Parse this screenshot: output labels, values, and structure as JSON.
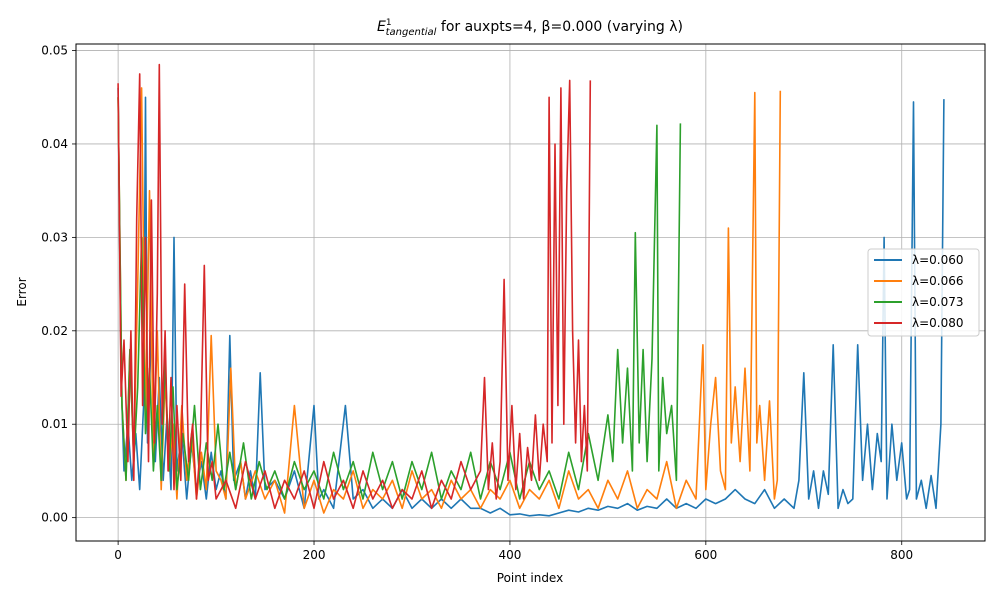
{
  "chart_data": {
    "type": "line",
    "title": {
      "symbol": "E",
      "superscript": "1",
      "subscript": "tangential",
      "rest": " for auxpts=4, β=0.000 (varying λ)"
    },
    "xlabel": "Point index",
    "ylabel": "Error",
    "xlim": [
      -43,
      885
    ],
    "ylim": [
      -0.0025,
      0.0507
    ],
    "xticks": [
      0,
      200,
      400,
      600,
      800
    ],
    "xtick_labels": [
      "0",
      "200",
      "400",
      "600",
      "800"
    ],
    "yticks": [
      0.0,
      0.01,
      0.02,
      0.03,
      0.04,
      0.05
    ],
    "ytick_labels": [
      "0.00",
      "0.01",
      "0.02",
      "0.03",
      "0.04",
      "0.05"
    ],
    "grid": true,
    "legend_position": "center-right",
    "series": [
      {
        "name": "λ=0.060",
        "color": "#1f77b4",
        "x": [
          0,
          3,
          6,
          10,
          14,
          18,
          22,
          26,
          28,
          30,
          34,
          38,
          42,
          46,
          50,
          54,
          57,
          60,
          65,
          70,
          75,
          80,
          85,
          90,
          95,
          100,
          105,
          110,
          114,
          118,
          125,
          130,
          135,
          140,
          145,
          150,
          160,
          170,
          180,
          190,
          200,
          205,
          210,
          220,
          232,
          240,
          250,
          260,
          270,
          280,
          290,
          300,
          310,
          320,
          330,
          340,
          350,
          360,
          370,
          380,
          390,
          400,
          410,
          420,
          430,
          440,
          450,
          460,
          470,
          480,
          490,
          500,
          510,
          520,
          530,
          540,
          550,
          560,
          570,
          580,
          590,
          600,
          610,
          620,
          630,
          640,
          650,
          660,
          670,
          680,
          690,
          695,
          700,
          705,
          710,
          715,
          720,
          725,
          730,
          735,
          740,
          745,
          750,
          755,
          760,
          765,
          770,
          775,
          779,
          782,
          785,
          790,
          795,
          800,
          805,
          808,
          812,
          815,
          820,
          825,
          830,
          835,
          840,
          843
        ],
        "values": [
          0.046,
          0.015,
          0.005,
          0.01,
          0.004,
          0.009,
          0.003,
          0.012,
          0.045,
          0.008,
          0.02,
          0.006,
          0.015,
          0.004,
          0.011,
          0.003,
          0.03,
          0.005,
          0.009,
          0.002,
          0.008,
          0.003,
          0.006,
          0.002,
          0.007,
          0.003,
          0.005,
          0.002,
          0.0195,
          0.004,
          0.006,
          0.002,
          0.005,
          0.002,
          0.0155,
          0.003,
          0.004,
          0.002,
          0.005,
          0.001,
          0.012,
          0.002,
          0.003,
          0.001,
          0.012,
          0.002,
          0.003,
          0.001,
          0.002,
          0.001,
          0.003,
          0.001,
          0.002,
          0.001,
          0.002,
          0.001,
          0.002,
          0.001,
          0.001,
          0.0005,
          0.001,
          0.0003,
          0.0004,
          0.0002,
          0.0003,
          0.0002,
          0.0005,
          0.0008,
          0.0006,
          0.001,
          0.0008,
          0.0012,
          0.001,
          0.0015,
          0.0008,
          0.0012,
          0.001,
          0.002,
          0.001,
          0.0015,
          0.001,
          0.002,
          0.0015,
          0.002,
          0.003,
          0.002,
          0.0015,
          0.003,
          0.001,
          0.002,
          0.001,
          0.004,
          0.0155,
          0.002,
          0.005,
          0.001,
          0.005,
          0.0025,
          0.0185,
          0.001,
          0.003,
          0.0015,
          0.002,
          0.0185,
          0.004,
          0.01,
          0.003,
          0.009,
          0.006,
          0.03,
          0.002,
          0.01,
          0.004,
          0.008,
          0.002,
          0.003,
          0.0445,
          0.002,
          0.004,
          0.001,
          0.0045,
          0.001,
          0.01,
          0.0448
        ]
      },
      {
        "name": "λ=0.066",
        "color": "#ff7f0e",
        "x": [
          0,
          4,
          8,
          12,
          16,
          20,
          24,
          28,
          32,
          36,
          40,
          44,
          48,
          52,
          56,
          60,
          65,
          70,
          75,
          80,
          85,
          90,
          95,
          100,
          105,
          110,
          115,
          120,
          125,
          130,
          140,
          150,
          160,
          170,
          180,
          190,
          200,
          210,
          220,
          230,
          240,
          250,
          260,
          270,
          280,
          290,
          300,
          310,
          320,
          330,
          340,
          350,
          360,
          370,
          380,
          390,
          400,
          410,
          420,
          430,
          440,
          450,
          460,
          470,
          480,
          490,
          500,
          510,
          520,
          530,
          540,
          550,
          560,
          570,
          580,
          590,
          597,
          600,
          605,
          610,
          615,
          620,
          623,
          626,
          630,
          635,
          640,
          645,
          650,
          652,
          655,
          660,
          665,
          670,
          673,
          676
        ],
        "values": [
          0.045,
          0.012,
          0.004,
          0.018,
          0.006,
          0.025,
          0.046,
          0.01,
          0.035,
          0.006,
          0.02,
          0.003,
          0.015,
          0.005,
          0.01,
          0.002,
          0.012,
          0.004,
          0.009,
          0.002,
          0.007,
          0.003,
          0.0195,
          0.005,
          0.004,
          0.002,
          0.016,
          0.003,
          0.006,
          0.002,
          0.005,
          0.002,
          0.004,
          0.0005,
          0.012,
          0.001,
          0.004,
          0.0005,
          0.003,
          0.002,
          0.005,
          0.001,
          0.003,
          0.002,
          0.004,
          0.001,
          0.005,
          0.002,
          0.003,
          0.001,
          0.004,
          0.002,
          0.003,
          0.001,
          0.003,
          0.002,
          0.004,
          0.001,
          0.003,
          0.002,
          0.004,
          0.001,
          0.005,
          0.002,
          0.003,
          0.001,
          0.004,
          0.002,
          0.005,
          0.001,
          0.003,
          0.002,
          0.006,
          0.001,
          0.004,
          0.002,
          0.0185,
          0.003,
          0.01,
          0.015,
          0.005,
          0.003,
          0.031,
          0.008,
          0.014,
          0.006,
          0.016,
          0.005,
          0.0455,
          0.008,
          0.012,
          0.004,
          0.0125,
          0.002,
          0.004,
          0.0457
        ]
      },
      {
        "name": "λ=0.073",
        "color": "#2ca02c",
        "x": [
          0,
          4,
          8,
          12,
          16,
          20,
          24,
          28,
          32,
          36,
          40,
          44,
          48,
          52,
          56,
          60,
          66,
          72,
          78,
          84,
          90,
          96,
          102,
          108,
          114,
          120,
          128,
          136,
          144,
          152,
          160,
          170,
          180,
          190,
          200,
          210,
          220,
          230,
          240,
          250,
          260,
          270,
          280,
          290,
          300,
          310,
          320,
          330,
          340,
          350,
          360,
          370,
          380,
          390,
          400,
          410,
          420,
          430,
          440,
          450,
          460,
          470,
          480,
          490,
          500,
          505,
          510,
          515,
          520,
          525,
          528,
          532,
          536,
          540,
          545,
          550,
          552,
          556,
          560,
          565,
          570,
          574
        ],
        "values": [
          0.045,
          0.012,
          0.004,
          0.018,
          0.006,
          0.014,
          0.03,
          0.009,
          0.016,
          0.005,
          0.012,
          0.004,
          0.017,
          0.005,
          0.014,
          0.003,
          0.009,
          0.004,
          0.012,
          0.003,
          0.008,
          0.004,
          0.01,
          0.003,
          0.007,
          0.003,
          0.008,
          0.002,
          0.006,
          0.003,
          0.005,
          0.002,
          0.006,
          0.003,
          0.005,
          0.002,
          0.007,
          0.003,
          0.006,
          0.002,
          0.007,
          0.003,
          0.006,
          0.002,
          0.006,
          0.003,
          0.007,
          0.002,
          0.005,
          0.003,
          0.007,
          0.002,
          0.006,
          0.003,
          0.007,
          0.002,
          0.006,
          0.003,
          0.005,
          0.002,
          0.007,
          0.003,
          0.009,
          0.004,
          0.011,
          0.006,
          0.018,
          0.008,
          0.016,
          0.005,
          0.0305,
          0.008,
          0.018,
          0.006,
          0.017,
          0.042,
          0.005,
          0.015,
          0.009,
          0.012,
          0.004,
          0.0422
        ]
      },
      {
        "name": "λ=0.080",
        "color": "#d62728",
        "x": [
          0,
          3,
          6,
          10,
          13,
          16,
          19,
          22,
          25,
          28,
          31,
          34,
          37,
          40,
          42,
          45,
          48,
          51,
          54,
          57,
          60,
          64,
          68,
          72,
          76,
          80,
          84,
          88,
          92,
          96,
          100,
          110,
          120,
          130,
          140,
          150,
          160,
          170,
          180,
          190,
          200,
          210,
          220,
          230,
          240,
          250,
          260,
          270,
          280,
          290,
          300,
          310,
          320,
          330,
          340,
          350,
          360,
          370,
          374,
          378,
          382,
          386,
          390,
          394,
          398,
          402,
          406,
          410,
          414,
          418,
          422,
          426,
          430,
          434,
          438,
          440,
          443,
          446,
          449,
          452,
          455,
          458,
          461,
          464,
          467,
          470,
          473,
          476,
          479,
          482
        ],
        "values": [
          0.0465,
          0.013,
          0.019,
          0.006,
          0.02,
          0.004,
          0.032,
          0.0475,
          0.012,
          0.03,
          0.006,
          0.034,
          0.008,
          0.024,
          0.0485,
          0.01,
          0.02,
          0.005,
          0.015,
          0.003,
          0.012,
          0.004,
          0.025,
          0.006,
          0.01,
          0.002,
          0.008,
          0.027,
          0.004,
          0.006,
          0.002,
          0.004,
          0.001,
          0.006,
          0.002,
          0.005,
          0.001,
          0.004,
          0.002,
          0.005,
          0.001,
          0.006,
          0.002,
          0.004,
          0.001,
          0.005,
          0.002,
          0.004,
          0.001,
          0.003,
          0.002,
          0.005,
          0.001,
          0.004,
          0.002,
          0.006,
          0.003,
          0.005,
          0.015,
          0.003,
          0.008,
          0.002,
          0.006,
          0.0255,
          0.004,
          0.012,
          0.003,
          0.009,
          0.002,
          0.0075,
          0.004,
          0.011,
          0.004,
          0.01,
          0.006,
          0.045,
          0.008,
          0.04,
          0.012,
          0.046,
          0.01,
          0.035,
          0.0468,
          0.02,
          0.008,
          0.019,
          0.006,
          0.012,
          0.005,
          0.0468
        ]
      }
    ]
  }
}
